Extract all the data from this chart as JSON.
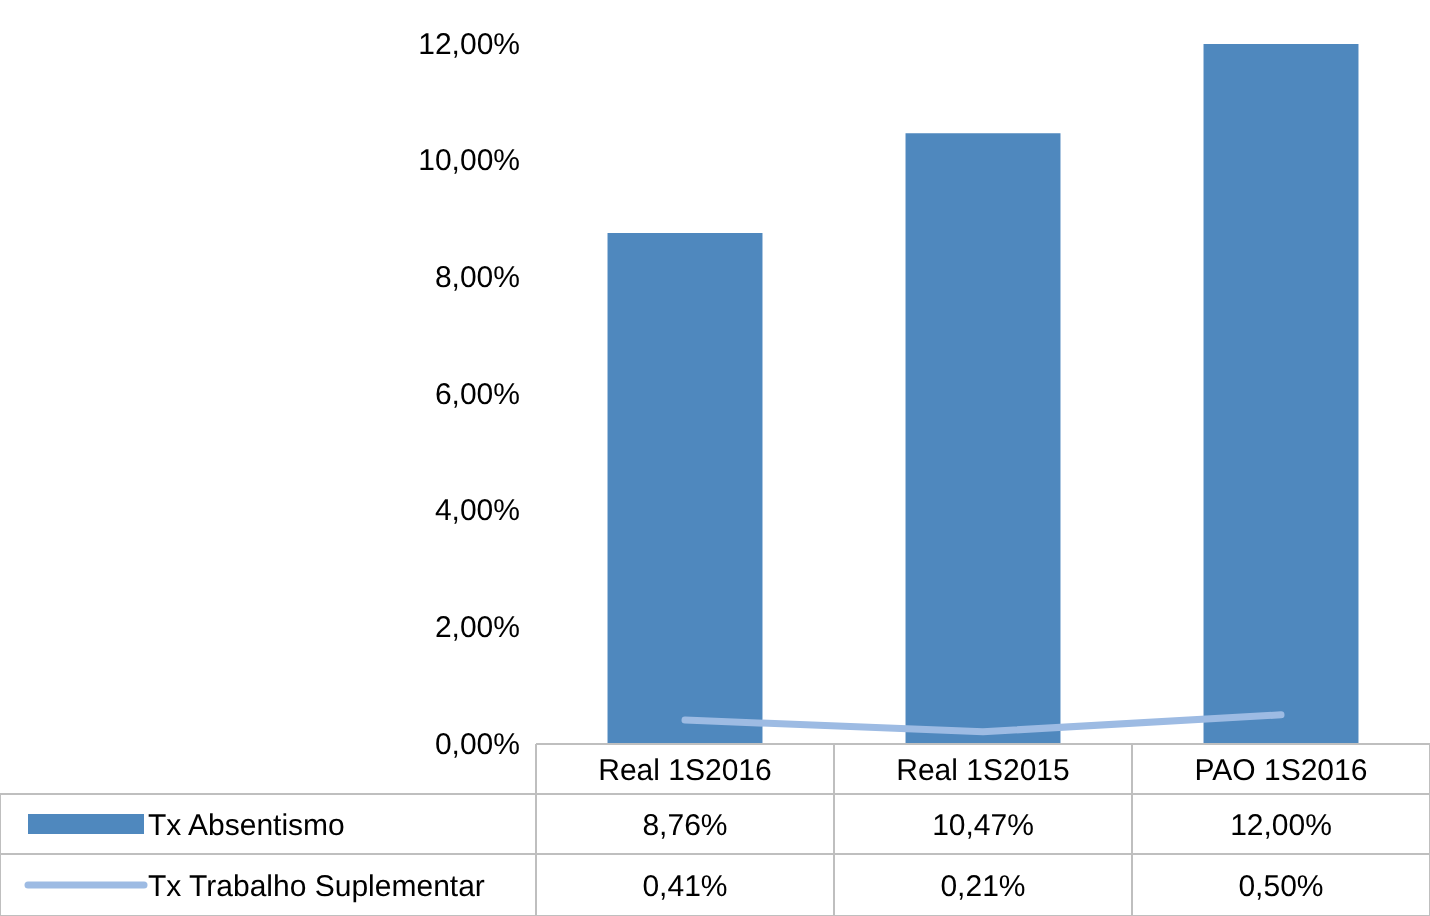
{
  "chart_data": {
    "type": "bar",
    "categories": [
      "Real 1S2016",
      "Real 1S2015",
      "PAO 1S2016"
    ],
    "series": [
      {
        "name": "Tx Absentismo",
        "color": "#4f88be",
        "values": [
          8.76,
          10.47,
          12.0
        ],
        "value_labels": [
          "8,76%",
          "10,47%",
          "12,00%"
        ]
      },
      {
        "name": "Tx Trabalho Suplementar",
        "type": "line",
        "color": "#9dbbe3",
        "values": [
          0.41,
          0.21,
          0.5
        ],
        "value_labels": [
          "0,41%",
          "0,21%",
          "0,50%"
        ]
      }
    ],
    "ylim": [
      0,
      12
    ],
    "yticks": [
      {
        "value": 0,
        "label": "0,00%"
      },
      {
        "value": 2,
        "label": "2,00%"
      },
      {
        "value": 4,
        "label": "4,00%"
      },
      {
        "value": 6,
        "label": "6,00%"
      },
      {
        "value": 8,
        "label": "8,00%"
      },
      {
        "value": 10,
        "label": "10,00%"
      },
      {
        "value": 12,
        "label": "12,00%"
      }
    ],
    "legend": "bottom",
    "marker": "none"
  }
}
